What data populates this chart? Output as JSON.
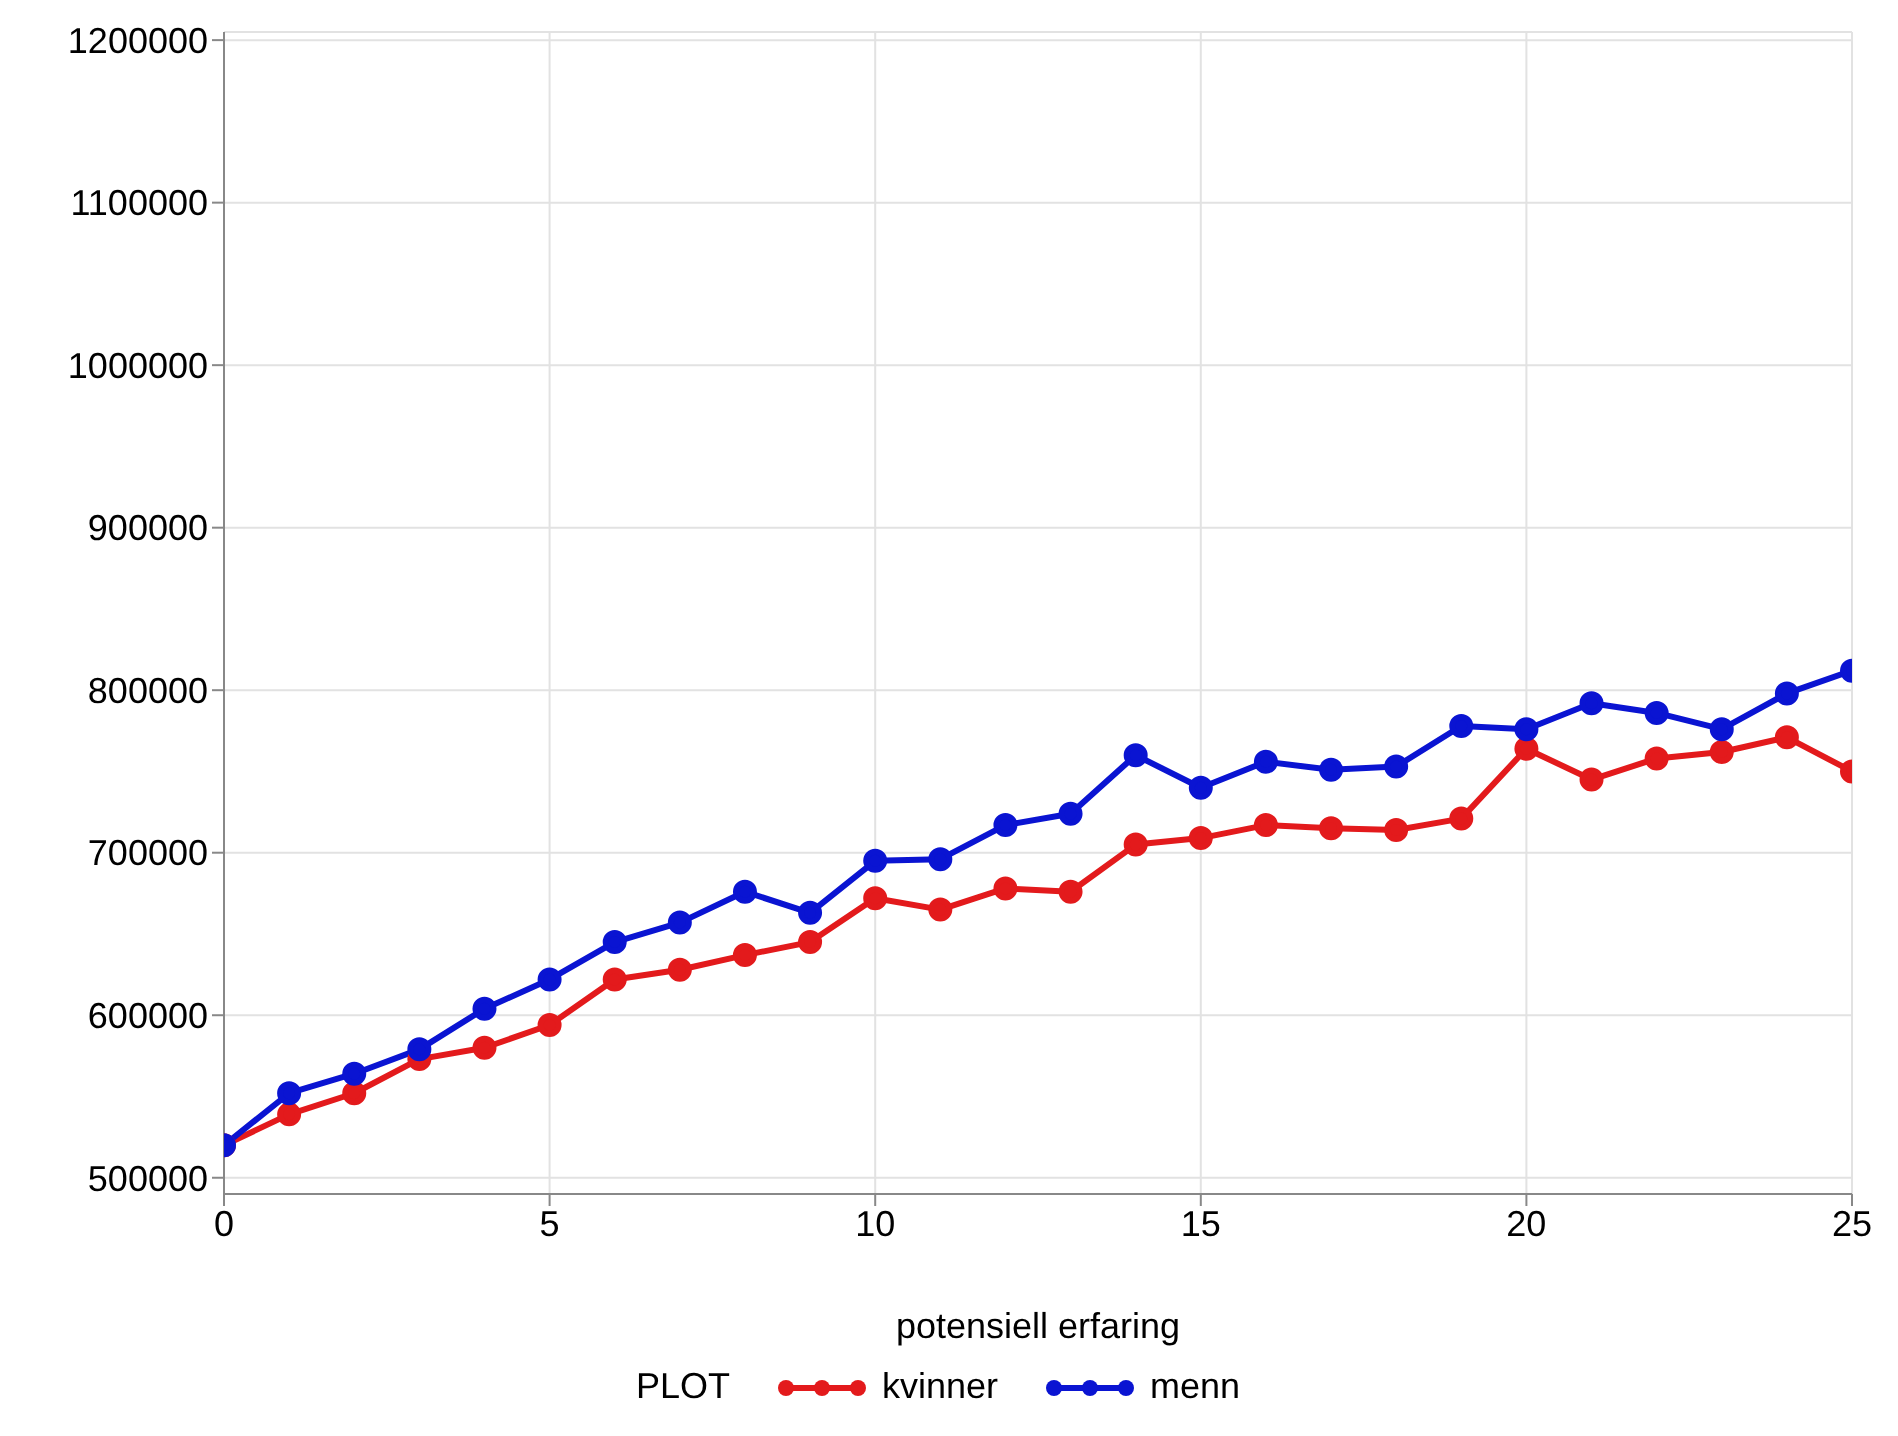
{
  "chart_data": {
    "type": "line",
    "xlabel": "potensiell erfaring",
    "legend_title": "PLOT",
    "x": [
      0,
      1,
      2,
      3,
      4,
      5,
      6,
      7,
      8,
      9,
      10,
      11,
      12,
      13,
      14,
      15,
      16,
      17,
      18,
      19,
      20,
      21,
      22,
      23,
      24,
      25
    ],
    "series": [
      {
        "name": "kvinner",
        "color": "#e31a1c",
        "values": [
          520000,
          539000,
          552000,
          573000,
          580000,
          594000,
          622000,
          628000,
          637000,
          645000,
          672000,
          665000,
          678000,
          676000,
          705000,
          709000,
          717000,
          715000,
          714000,
          721000,
          764000,
          745000,
          758000,
          762000,
          771000,
          750000
        ]
      },
      {
        "name": "menn",
        "color": "#0a14d2",
        "values": [
          520000,
          552000,
          564000,
          579000,
          604000,
          622000,
          645000,
          657000,
          676000,
          663000,
          695000,
          696000,
          717000,
          724000,
          760000,
          740000,
          756000,
          751000,
          753000,
          778000,
          776000,
          792000,
          786000,
          776000,
          798000,
          812000
        ]
      }
    ],
    "xlim": [
      0,
      25
    ],
    "xticks": [
      0,
      5,
      10,
      15,
      20,
      25
    ],
    "ylim": [
      490000,
      1205000
    ],
    "yticks": [
      500000,
      600000,
      700000,
      800000,
      900000,
      1000000,
      1100000,
      1200000
    ],
    "grid": true,
    "legend": "bottom",
    "marker": "circle",
    "line_style": "solid"
  }
}
